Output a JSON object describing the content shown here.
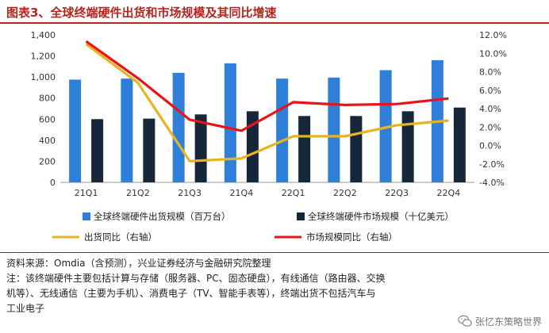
{
  "page": {
    "title": "图表3、全球终端硬件出货和市场规模及其同比增速",
    "source": "资料来源：Omdia（含预测），兴业证券经济与金融研究院整理",
    "note_line1": "注：该终端硬件主要包括计算与存储（服务器、PC、固态硬盘），有线通信（路由器、交换",
    "note_line2": "机等）、无线通信（主要为手机）、消费电子（TV、智能手表等），终端出货不包括汽车与",
    "note_line3": "工业电子",
    "watermark": "张忆东策略世界"
  },
  "chart_data": {
    "type": "bar",
    "categories": [
      "21Q1",
      "21Q2",
      "21Q3",
      "21Q4",
      "22Q1",
      "22Q2",
      "22Q3",
      "22Q4"
    ],
    "series": [
      {
        "name": "全球终端硬件出货规模（百万台）",
        "type": "bar",
        "axis": "left",
        "color": "#2f7fd8",
        "values": [
          975,
          985,
          1040,
          1130,
          985,
          995,
          1065,
          1160
        ]
      },
      {
        "name": "全球终端硬件市场规模（十亿美元）",
        "type": "bar",
        "axis": "left",
        "color": "#17273a",
        "values": [
          600,
          605,
          645,
          675,
          630,
          630,
          675,
          710
        ]
      },
      {
        "name": "出货同比（右轴）",
        "type": "line",
        "axis": "right",
        "color": "#e6b422",
        "values": [
          11.0,
          6.8,
          -1.7,
          -1.4,
          1.0,
          1.0,
          2.2,
          2.7
        ]
      },
      {
        "name": "市场规模同比（右轴）",
        "type": "line",
        "axis": "right",
        "color": "#e8141a",
        "values": [
          11.3,
          7.3,
          2.8,
          1.6,
          4.7,
          4.4,
          4.5,
          5.1
        ]
      }
    ],
    "left_axis": {
      "min": 0,
      "max": 1400,
      "ticks": [
        "0",
        "200",
        "400",
        "600",
        "800",
        "1,000",
        "1,200",
        "1,400"
      ]
    },
    "right_axis": {
      "min": -4,
      "max": 12,
      "ticks": [
        "-4.0%",
        "-2.0%",
        "0.0%",
        "2.0%",
        "4.0%",
        "6.0%",
        "8.0%",
        "10.0%",
        "12.0%"
      ]
    },
    "legend_position": "bottom",
    "grid": false
  }
}
